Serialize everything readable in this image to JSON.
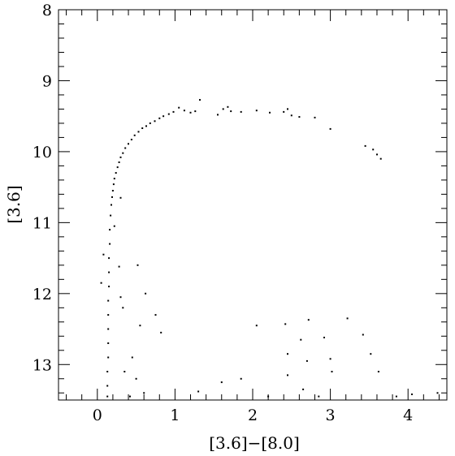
{
  "chart_data": {
    "type": "scatter",
    "xlabel": "[3.6]−[8.0]",
    "ylabel": "[3.6]",
    "xlim": [
      -0.5,
      4.5
    ],
    "ylim": [
      13.5,
      8
    ],
    "y_inverted": true,
    "x_ticks": [
      0,
      1,
      2,
      3,
      4
    ],
    "y_ticks": [
      8,
      9,
      10,
      11,
      12,
      13
    ],
    "x_tick_labels": [
      "0",
      "1",
      "2",
      "3",
      "4"
    ],
    "y_tick_labels": [
      "8",
      "9",
      "10",
      "11",
      "12",
      "13"
    ],
    "grid": false,
    "legend": "none",
    "marker_color": "#000000",
    "series": [
      {
        "points": [
          [
            1.32,
            9.27
          ],
          [
            1.05,
            9.38
          ],
          [
            1.12,
            9.42
          ],
          [
            1.2,
            9.45
          ],
          [
            1.26,
            9.43
          ],
          [
            0.98,
            9.44
          ],
          [
            0.92,
            9.47
          ],
          [
            0.85,
            9.5
          ],
          [
            0.8,
            9.53
          ],
          [
            0.74,
            9.57
          ],
          [
            0.68,
            9.6
          ],
          [
            0.63,
            9.64
          ],
          [
            0.58,
            9.67
          ],
          [
            0.53,
            9.72
          ],
          [
            0.48,
            9.77
          ],
          [
            0.44,
            9.83
          ],
          [
            0.4,
            9.89
          ],
          [
            0.36,
            9.95
          ],
          [
            0.33,
            10.02
          ],
          [
            0.3,
            10.08
          ],
          [
            0.28,
            10.15
          ],
          [
            0.26,
            10.22
          ],
          [
            0.24,
            10.3
          ],
          [
            0.22,
            10.38
          ],
          [
            0.21,
            10.46
          ],
          [
            0.2,
            10.55
          ],
          [
            0.19,
            10.64
          ],
          [
            1.55,
            9.48
          ],
          [
            1.62,
            9.4
          ],
          [
            1.68,
            9.37
          ],
          [
            1.72,
            9.43
          ],
          [
            1.85,
            9.44
          ],
          [
            2.05,
            9.42
          ],
          [
            2.22,
            9.45
          ],
          [
            2.4,
            9.44
          ],
          [
            2.45,
            9.4
          ],
          [
            2.5,
            9.49
          ],
          [
            2.6,
            9.51
          ],
          [
            2.8,
            9.52
          ],
          [
            3.0,
            9.68
          ],
          [
            3.45,
            9.92
          ],
          [
            3.55,
            9.97
          ],
          [
            3.6,
            10.04
          ],
          [
            3.65,
            10.1
          ],
          [
            0.18,
            10.75
          ],
          [
            0.17,
            10.9
          ],
          [
            0.16,
            11.1
          ],
          [
            0.16,
            11.3
          ],
          [
            0.15,
            11.5
          ],
          [
            0.15,
            11.7
          ],
          [
            0.15,
            11.9
          ],
          [
            0.14,
            12.1
          ],
          [
            0.14,
            12.3
          ],
          [
            0.14,
            12.5
          ],
          [
            0.14,
            12.7
          ],
          [
            0.14,
            12.9
          ],
          [
            0.13,
            13.1
          ],
          [
            0.13,
            13.3
          ],
          [
            0.13,
            13.45
          ],
          [
            0.3,
            10.65
          ],
          [
            0.22,
            11.05
          ],
          [
            0.08,
            11.45
          ],
          [
            0.28,
            11.62
          ],
          [
            0.05,
            11.85
          ],
          [
            0.3,
            12.05
          ],
          [
            0.33,
            12.2
          ],
          [
            0.52,
            11.6
          ],
          [
            0.62,
            12.0
          ],
          [
            0.55,
            12.45
          ],
          [
            0.75,
            12.3
          ],
          [
            0.82,
            12.55
          ],
          [
            0.45,
            12.9
          ],
          [
            0.5,
            13.2
          ],
          [
            0.35,
            13.1
          ],
          [
            0.6,
            13.4
          ],
          [
            0.42,
            13.45
          ],
          [
            1.3,
            13.38
          ],
          [
            1.6,
            13.25
          ],
          [
            1.85,
            13.2
          ],
          [
            2.05,
            12.45
          ],
          [
            2.42,
            12.43
          ],
          [
            2.45,
            12.85
          ],
          [
            2.45,
            13.15
          ],
          [
            2.62,
            12.65
          ],
          [
            2.7,
            12.95
          ],
          [
            2.65,
            13.35
          ],
          [
            2.72,
            12.37
          ],
          [
            2.92,
            12.62
          ],
          [
            3.0,
            12.92
          ],
          [
            3.02,
            13.1
          ],
          [
            3.22,
            12.35
          ],
          [
            3.42,
            12.58
          ],
          [
            3.52,
            12.85
          ],
          [
            3.62,
            13.1
          ],
          [
            3.85,
            13.45
          ],
          [
            4.38,
            13.4
          ],
          [
            2.2,
            13.45
          ],
          [
            2.85,
            13.45
          ],
          [
            4.05,
            13.42
          ]
        ]
      }
    ]
  }
}
